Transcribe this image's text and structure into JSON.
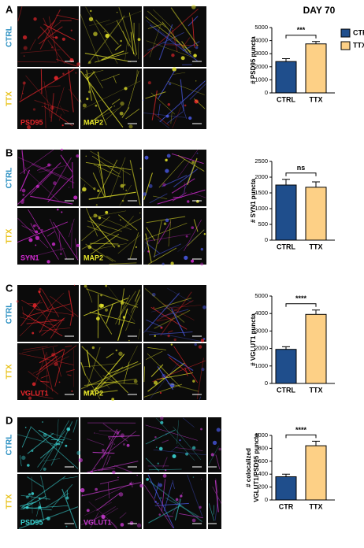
{
  "title": "DAY 70",
  "panels": [
    {
      "label": "A",
      "rows": [
        "CTRL",
        "TTX"
      ],
      "image_columns": 3,
      "stains": [
        {
          "text": "PSD95",
          "color": "#e8262b"
        },
        {
          "text": "MAP2",
          "color": "#e6e62a"
        }
      ]
    },
    {
      "label": "B",
      "rows": [
        "CTRL",
        "TTX"
      ],
      "image_columns": 3,
      "stains": [
        {
          "text": "SYN1",
          "color": "#d02ad0"
        },
        {
          "text": "MAP2",
          "color": "#e6e62a"
        }
      ]
    },
    {
      "label": "C",
      "rows": [
        "CTRL",
        "TTX"
      ],
      "image_columns": 3,
      "stains": [
        {
          "text": "VGLUT1",
          "color": "#e8262b"
        },
        {
          "text": "MAP2",
          "color": "#e6e62a"
        }
      ]
    },
    {
      "label": "D",
      "rows": [
        "CTRL",
        "TTX"
      ],
      "image_columns": 4,
      "stains": [
        {
          "text": "PSD95",
          "color": "#3ad6d6"
        },
        {
          "text": "VGLUT1",
          "color": "#c83ad0"
        }
      ]
    }
  ],
  "chart_data": [
    {
      "type": "bar",
      "ylabel": "# PSD95 puncta",
      "categories": [
        "CTRL",
        "TTX"
      ],
      "values": [
        2400,
        3750
      ],
      "errors": [
        220,
        180
      ],
      "colors": [
        "#1f4e8c",
        "#fdd086"
      ],
      "legend": [
        "CTRL",
        "TTX"
      ],
      "significance": "***",
      "ylim": [
        0,
        5000
      ],
      "yticks": [
        0,
        1000,
        2000,
        3000,
        4000,
        5000
      ]
    },
    {
      "type": "bar",
      "ylabel": "# SYN1 puncta",
      "categories": [
        "CTRL",
        "TTX"
      ],
      "values": [
        1750,
        1680
      ],
      "errors": [
        180,
        170
      ],
      "colors": [
        "#1f4e8c",
        "#fdd086"
      ],
      "significance": "ns",
      "ylim": [
        0,
        2500
      ],
      "yticks": [
        0,
        500,
        1000,
        1500,
        2000,
        2500
      ]
    },
    {
      "type": "bar",
      "ylabel": "# VGLUT1 puncta",
      "categories": [
        "CTRL",
        "TTX"
      ],
      "values": [
        1950,
        3950
      ],
      "errors": [
        150,
        250
      ],
      "colors": [
        "#1f4e8c",
        "#fdd086"
      ],
      "significance": "****",
      "ylim": [
        0,
        5000
      ],
      "yticks": [
        0,
        1000,
        2000,
        3000,
        4000,
        5000
      ]
    },
    {
      "type": "bar",
      "ylabel": [
        "# colocalized",
        "VGLUT1/PSD95 puncta"
      ],
      "categories": [
        "CTR",
        "TTX"
      ],
      "values": [
        360,
        840
      ],
      "errors": [
        40,
        70
      ],
      "colors": [
        "#1f4e8c",
        "#fdd086"
      ],
      "significance": "****",
      "ylim": [
        0,
        1000
      ],
      "yticks": [
        0,
        200,
        400,
        600,
        800,
        1000
      ]
    }
  ]
}
